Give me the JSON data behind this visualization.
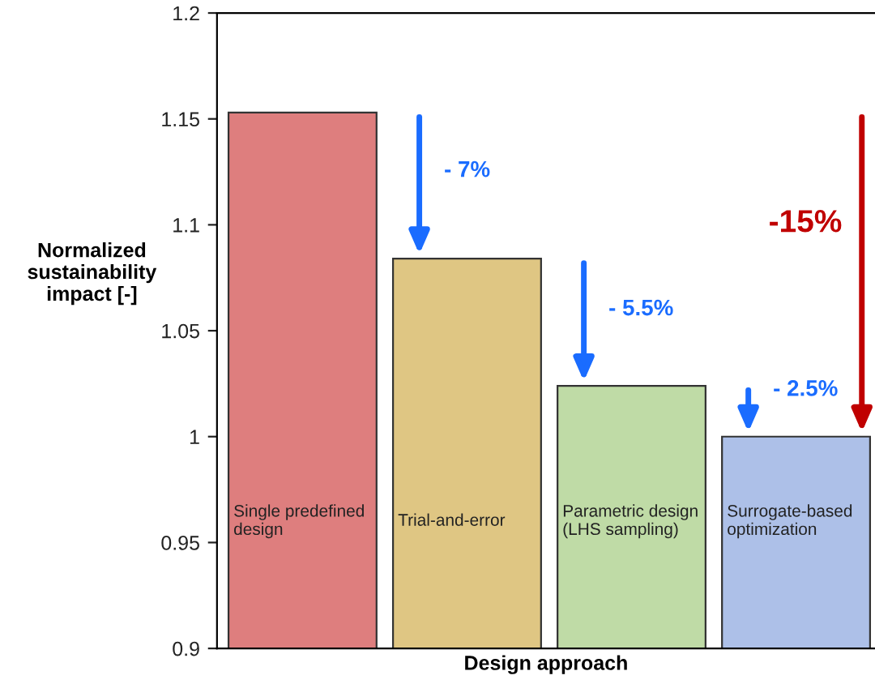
{
  "chart_data": {
    "type": "bar",
    "categories": [
      "Single predefined\ndesign",
      "Trial-and-error",
      "Parametric design\n(LHS sampling)",
      "Surrogate-based\noptimization"
    ],
    "values": [
      1.153,
      1.084,
      1.024,
      1.0
    ],
    "colors": [
      "#de7e7e",
      "#dfc683",
      "#bfdba6",
      "#adc0e8"
    ],
    "xlabel": "Design approach",
    "ylabel": "Normalized\nsustainability\nimpact [-]",
    "ylim": [
      0.9,
      1.2
    ],
    "yticks": [
      {
        "value": 0.9,
        "label": "0.9"
      },
      {
        "value": 0.95,
        "label": "0.95"
      },
      {
        "value": 1.0,
        "label": "1"
      },
      {
        "value": 1.05,
        "label": "1.05"
      },
      {
        "value": 1.1,
        "label": "1.1"
      },
      {
        "value": 1.15,
        "label": "1.15"
      },
      {
        "value": 1.2,
        "label": "1.2"
      }
    ],
    "annotations": [
      "- 7%",
      "- 5.5%",
      "- 2.5%",
      "-15%"
    ],
    "grid": false,
    "legend": false
  }
}
